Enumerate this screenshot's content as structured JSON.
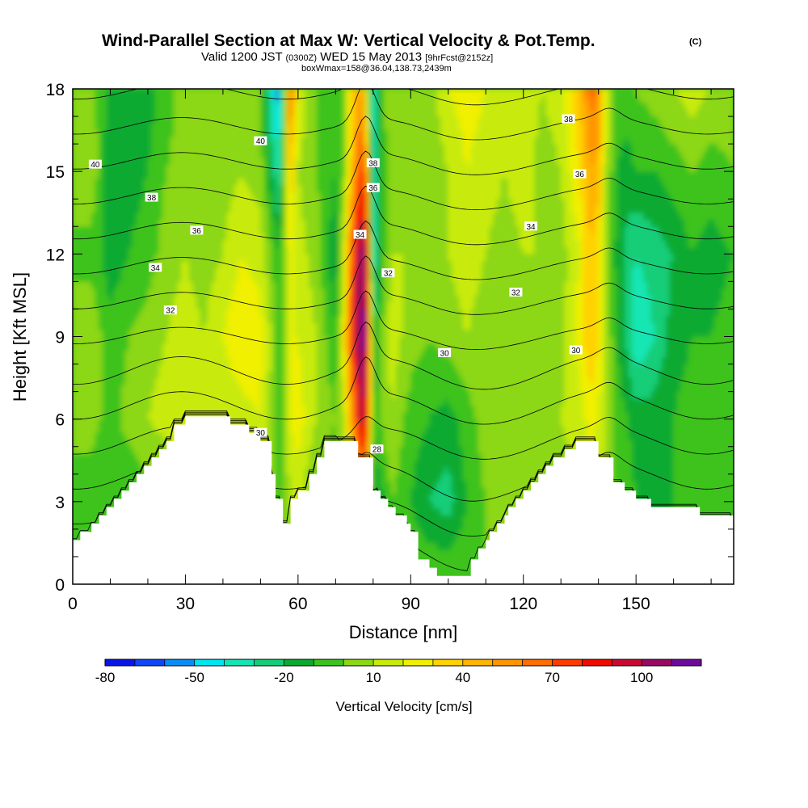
{
  "chart_data": {
    "type": "heatmap",
    "title": "Wind-Parallel Section at Max W: Vertical Velocity & Pot.Temp.",
    "title_mark": "(C)",
    "subtitle_parts": [
      "Valid 1200 JST ",
      "(0300Z)",
      " WED 15 May 2013 ",
      "[9hrFcst@2152z]"
    ],
    "subtitle2": "boxWmax=158@36.04,138.73,2439m",
    "xlabel": "Distance [nm]",
    "ylabel": "Height [Kft MSL]",
    "xlim": [
      0,
      176
    ],
    "ylim": [
      0,
      18
    ],
    "x_ticks": [
      0,
      30,
      60,
      90,
      120,
      150
    ],
    "y_ticks": [
      0,
      3,
      6,
      9,
      12,
      15,
      18
    ],
    "x_minor_step": 10,
    "y_minor_step": 1,
    "colorbar": {
      "title": "Vertical Velocity [cm/s]",
      "tick_labels": [
        "-80",
        "-50",
        "-20",
        "10",
        "40",
        "70",
        "100"
      ],
      "colors": [
        "#0a14e6",
        "#0f46f5",
        "#0a8cf5",
        "#00e6f0",
        "#12e6b4",
        "#14cd78",
        "#0aaa32",
        "#3cc31e",
        "#8cd714",
        "#c8eb0a",
        "#f0f000",
        "#ffd200",
        "#ffb400",
        "#ff9600",
        "#ff6e00",
        "#ff3c00",
        "#f00a00",
        "#c80a32",
        "#960a64",
        "#6e0a9b"
      ]
    },
    "terrain": {
      "x": [
        0,
        1,
        2,
        3,
        4,
        5,
        6,
        7,
        8,
        9,
        10,
        11,
        12,
        13,
        14,
        15,
        16,
        17,
        18,
        19,
        20,
        21,
        22,
        23,
        24,
        25,
        26,
        27,
        28,
        29,
        30,
        31,
        32,
        33,
        34,
        35,
        36,
        37,
        38,
        39,
        40,
        41,
        42,
        43,
        44,
        45,
        46,
        47,
        48,
        49,
        50,
        51,
        52,
        53,
        54,
        55,
        56,
        57,
        58,
        59,
        60,
        61,
        62,
        63,
        64,
        65,
        66,
        67,
        68,
        69,
        70,
        71,
        72,
        73,
        74,
        75,
        76,
        77,
        78,
        79,
        80,
        81,
        82,
        83,
        84,
        85,
        86,
        87,
        88,
        89,
        90,
        91,
        92,
        93,
        94,
        95,
        96,
        97,
        98,
        99,
        100,
        101,
        102,
        103,
        104,
        105,
        106,
        107,
        108,
        109,
        110,
        111,
        112,
        113,
        114,
        115,
        116,
        117,
        118,
        119,
        120,
        121,
        122,
        123,
        124,
        125,
        126,
        127,
        128,
        129,
        130,
        131,
        132,
        133,
        134,
        135,
        136,
        137,
        138,
        139,
        140,
        141,
        142,
        143,
        144,
        145,
        146,
        147,
        148,
        149,
        150,
        151,
        152,
        153,
        154,
        155,
        156,
        157,
        158,
        159,
        160,
        161,
        162,
        163,
        164,
        165,
        166,
        167,
        168,
        169,
        170,
        171,
        172,
        173,
        174,
        175,
        176
      ],
      "h": [
        1.6,
        1.6,
        1.9,
        1.9,
        1.9,
        2.2,
        2.2,
        2.5,
        2.5,
        2.8,
        2.8,
        3.1,
        3.1,
        3.4,
        3.4,
        3.7,
        3.7,
        4.0,
        4.0,
        4.3,
        4.3,
        4.6,
        4.6,
        4.9,
        4.9,
        5.2,
        5.2,
        5.8,
        5.8,
        5.8,
        6.1,
        6.1,
        6.1,
        6.1,
        6.1,
        6.1,
        6.1,
        6.1,
        6.1,
        6.1,
        6.1,
        6.1,
        5.8,
        5.8,
        5.8,
        5.8,
        5.8,
        5.5,
        5.5,
        5.5,
        5.2,
        5.2,
        5.2,
        4.0,
        3.1,
        3.1,
        2.2,
        2.2,
        3.1,
        3.1,
        3.4,
        3.4,
        3.4,
        4.0,
        4.0,
        4.6,
        4.6,
        5.2,
        5.2,
        5.2,
        5.2,
        5.2,
        5.2,
        5.2,
        5.2,
        5.2,
        4.6,
        4.6,
        4.6,
        4.6,
        3.4,
        3.4,
        3.1,
        3.1,
        2.8,
        2.8,
        2.5,
        2.5,
        2.5,
        2.2,
        1.9,
        1.9,
        0.9,
        0.9,
        0.9,
        0.6,
        0.6,
        0.3,
        0.3,
        0.3,
        0.3,
        0.3,
        0.3,
        0.3,
        0.3,
        0.3,
        0.9,
        0.9,
        1.3,
        1.3,
        1.6,
        1.9,
        1.9,
        2.2,
        2.2,
        2.5,
        2.8,
        2.8,
        3.1,
        3.1,
        3.4,
        3.4,
        3.7,
        3.7,
        4.0,
        4.0,
        4.3,
        4.3,
        4.6,
        4.6,
        4.6,
        4.9,
        4.9,
        4.9,
        5.2,
        5.2,
        5.2,
        5.2,
        5.2,
        5.2,
        4.6,
        4.6,
        4.6,
        4.6,
        3.7,
        3.7,
        3.7,
        3.4,
        3.4,
        3.4,
        3.1,
        3.1,
        3.1,
        3.1,
        2.8,
        2.8,
        2.8,
        2.8,
        2.8,
        2.8,
        2.8,
        2.8,
        2.8,
        2.8,
        2.8,
        2.8,
        2.8,
        2.5,
        2.5,
        2.5,
        2.5,
        2.5,
        2.5,
        2.5,
        2.5,
        2.5,
        2.2,
        2.2,
        2.2,
        2.2
      ]
    },
    "velocity_field": {
      "x_nm": [
        0,
        5,
        10,
        15,
        20,
        25,
        30,
        35,
        40,
        45,
        50,
        52,
        55,
        58,
        60,
        65,
        70,
        72,
        75,
        77,
        78,
        79,
        80,
        82,
        85,
        90,
        95,
        100,
        105,
        110,
        115,
        120,
        125,
        130,
        135,
        138,
        140,
        142,
        145,
        148,
        150,
        155,
        160,
        165,
        170,
        176
      ],
      "levels_kft": [
        0,
        3,
        6,
        9,
        12,
        15,
        18
      ],
      "w_cm_s": [
        [
          0,
          0,
          0,
          0,
          0,
          0,
          0
        ],
        [
          -5,
          -8,
          5,
          10,
          -5,
          10,
          5
        ],
        [
          -10,
          -10,
          -5,
          -8,
          -15,
          -20,
          -15
        ],
        [
          -5,
          -10,
          5,
          0,
          -10,
          -15,
          -20
        ],
        [
          0,
          -5,
          10,
          5,
          -5,
          -10,
          -15
        ],
        [
          -5,
          -5,
          15,
          10,
          5,
          0,
          -5
        ],
        [
          0,
          5,
          20,
          15,
          10,
          5,
          5
        ],
        [
          0,
          5,
          15,
          10,
          5,
          0,
          0
        ],
        [
          0,
          5,
          10,
          20,
          10,
          5,
          5
        ],
        [
          0,
          5,
          15,
          30,
          20,
          10,
          5
        ],
        [
          0,
          5,
          20,
          25,
          15,
          5,
          0
        ],
        [
          0,
          5,
          10,
          15,
          5,
          -10,
          -25
        ],
        [
          0,
          -5,
          -5,
          -5,
          -10,
          -35,
          -60
        ],
        [
          0,
          10,
          20,
          20,
          25,
          40,
          70
        ],
        [
          0,
          15,
          25,
          20,
          15,
          10,
          20
        ],
        [
          0,
          -5,
          10,
          10,
          5,
          0,
          0
        ],
        [
          0,
          -10,
          0,
          -10,
          -20,
          -10,
          -5
        ],
        [
          0,
          0,
          10,
          20,
          10,
          0,
          0
        ],
        [
          0,
          20,
          60,
          90,
          80,
          50,
          40
        ],
        [
          0,
          40,
          100,
          115,
          110,
          80,
          50
        ],
        [
          0,
          50,
          90,
          110,
          100,
          60,
          30
        ],
        [
          0,
          20,
          50,
          60,
          50,
          20,
          -10
        ],
        [
          0,
          -20,
          -10,
          -20,
          -40,
          -50,
          -40
        ],
        [
          0,
          -15,
          0,
          0,
          -10,
          -10,
          -5
        ],
        [
          0,
          0,
          10,
          15,
          10,
          5,
          10
        ],
        [
          0,
          -10,
          -5,
          5,
          10,
          5,
          10
        ],
        [
          0,
          -20,
          -10,
          0,
          5,
          0,
          5
        ],
        [
          0,
          -25,
          -15,
          5,
          10,
          10,
          20
        ],
        [
          0,
          -10,
          -5,
          10,
          15,
          20,
          25
        ],
        [
          0,
          0,
          5,
          5,
          10,
          15,
          20
        ],
        [
          0,
          0,
          0,
          0,
          5,
          10,
          15
        ],
        [
          0,
          0,
          5,
          5,
          10,
          15,
          20
        ],
        [
          0,
          0,
          5,
          5,
          10,
          5,
          10
        ],
        [
          0,
          5,
          10,
          5,
          5,
          10,
          15
        ],
        [
          0,
          5,
          15,
          25,
          20,
          30,
          40
        ],
        [
          0,
          10,
          25,
          40,
          40,
          50,
          65
        ],
        [
          0,
          10,
          20,
          30,
          30,
          45,
          60
        ],
        [
          0,
          5,
          10,
          10,
          10,
          10,
          20
        ],
        [
          0,
          0,
          -5,
          -10,
          -15,
          -10,
          -5
        ],
        [
          0,
          -5,
          -10,
          -25,
          -25,
          -15,
          -5
        ],
        [
          0,
          -10,
          -15,
          -40,
          -30,
          -10,
          0
        ],
        [
          0,
          -15,
          -15,
          -30,
          -25,
          -10,
          5
        ],
        [
          0,
          -10,
          -10,
          -15,
          -20,
          -5,
          10
        ],
        [
          0,
          -5,
          -5,
          -10,
          -10,
          0,
          15
        ],
        [
          0,
          -5,
          -10,
          -10,
          -15,
          -5,
          10
        ],
        [
          0,
          -5,
          -5,
          -5,
          -10,
          0,
          5
        ]
      ]
    },
    "theta_contours": {
      "levels": [
        28,
        29,
        30,
        31,
        32,
        33,
        34,
        35,
        36,
        37,
        38,
        39,
        40,
        41,
        42
      ],
      "labels": [
        {
          "text": "40",
          "x": 6,
          "y": 15.25
        },
        {
          "text": "38",
          "x": 21,
          "y": 14.05
        },
        {
          "text": "36",
          "x": 33,
          "y": 12.85
        },
        {
          "text": "34",
          "x": 22,
          "y": 11.5
        },
        {
          "text": "32",
          "x": 26,
          "y": 9.95
        },
        {
          "text": "40",
          "x": 50,
          "y": 16.1
        },
        {
          "text": "38",
          "x": 80,
          "y": 15.3
        },
        {
          "text": "36",
          "x": 80,
          "y": 14.4
        },
        {
          "text": "34",
          "x": 76.5,
          "y": 12.7
        },
        {
          "text": "32",
          "x": 84,
          "y": 11.3
        },
        {
          "text": "30",
          "x": 99,
          "y": 8.4
        },
        {
          "text": "28",
          "x": 81,
          "y": 4.9
        },
        {
          "text": "30",
          "x": 50,
          "y": 5.5
        },
        {
          "text": "38",
          "x": 132,
          "y": 16.9
        },
        {
          "text": "36",
          "x": 135,
          "y": 14.9
        },
        {
          "text": "34",
          "x": 122,
          "y": 13.0
        },
        {
          "text": "32",
          "x": 118,
          "y": 10.6
        },
        {
          "text": "30",
          "x": 134,
          "y": 8.5
        }
      ]
    }
  }
}
